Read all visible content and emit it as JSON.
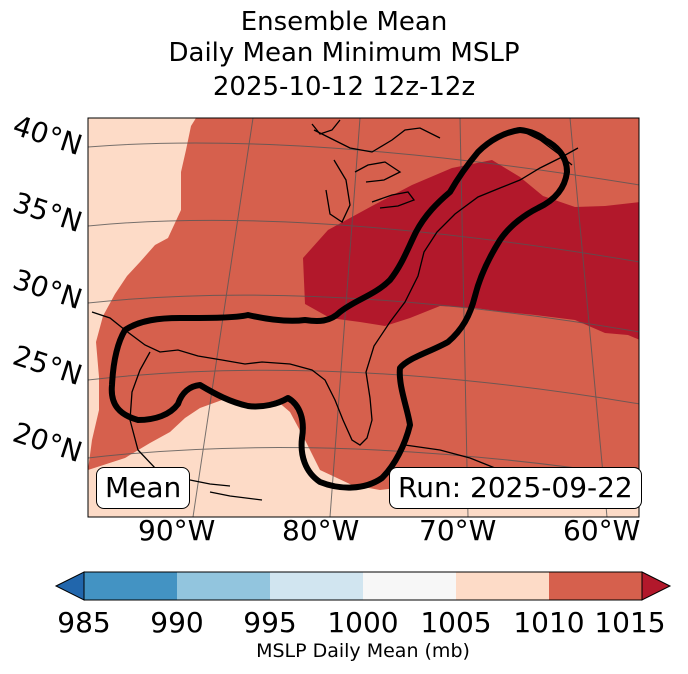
{
  "title": {
    "line1": "Ensemble Mean",
    "line2": "Daily Mean Minimum MSLP",
    "line3": "2025-10-12 12z-12z"
  },
  "map": {
    "lat_labels": [
      "40°N",
      "35°N",
      "30°N",
      "25°N",
      "20°N"
    ],
    "lon_labels": [
      "90°W",
      "80°W",
      "70°W",
      "60°W"
    ],
    "mean_label": "Mean",
    "run_label": "Run: 2025-09-22",
    "region_colors": {
      "1005-1010": "#fddbc7",
      "1010-1015": "#d6604d",
      "above-1015": "#b2182b"
    },
    "contour_color": "#000000"
  },
  "colorbar": {
    "label": "MSLP Daily Mean (mb)",
    "ticks": [
      "985",
      "990",
      "995",
      "1000",
      "1005",
      "1010",
      "1015"
    ],
    "under_color": "#2166ac",
    "over_color": "#b2182b",
    "bins": [
      {
        "range": "985-990",
        "color": "#4393c3"
      },
      {
        "range": "990-995",
        "color": "#92c5de"
      },
      {
        "range": "995-1000",
        "color": "#d1e5f0"
      },
      {
        "range": "1000-1005",
        "color": "#f7f7f7"
      },
      {
        "range": "1005-1010",
        "color": "#fddbc7"
      },
      {
        "range": "1010-1015",
        "color": "#d6604d"
      }
    ]
  }
}
